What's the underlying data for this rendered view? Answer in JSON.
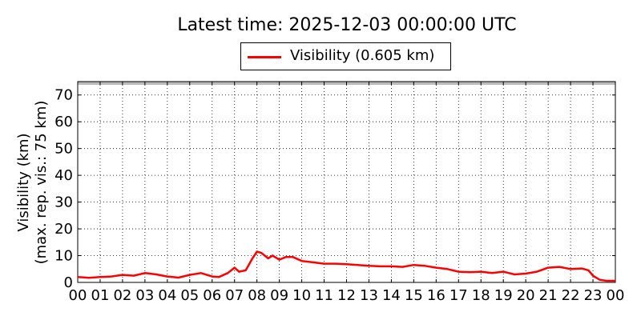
{
  "title": "Latest time: 2025-12-03 00:00:00 UTC",
  "legend": {
    "label": "Visibility (0.605 km)",
    "color": "#ff0000"
  },
  "ylabel_line1": "Visibility (km)",
  "ylabel_line2": "(max. rep. vis.: 75 km)",
  "chart_data": {
    "type": "line",
    "title": "Latest time: 2025-12-03 00:00:00 UTC",
    "xlabel": "",
    "ylabel": "Visibility (km) (max. rep. vis.: 75 km)",
    "xlim": [
      0,
      24
    ],
    "ylim": [
      0,
      75
    ],
    "xticks": [
      "00",
      "01",
      "02",
      "03",
      "04",
      "05",
      "06",
      "07",
      "08",
      "09",
      "10",
      "11",
      "12",
      "13",
      "14",
      "15",
      "16",
      "17",
      "18",
      "19",
      "20",
      "21",
      "22",
      "23",
      "00"
    ],
    "yticks": [
      0,
      10,
      20,
      30,
      40,
      50,
      60,
      70
    ],
    "grid": true,
    "legend_position": "top-center",
    "series": [
      {
        "name": "Visibility (0.605 km)",
        "color": "#ff0000",
        "x": [
          0,
          0.5,
          1,
          1.5,
          2,
          2.5,
          3,
          3.5,
          4,
          4.5,
          5,
          5.5,
          6,
          6.3,
          6.7,
          7,
          7.2,
          7.5,
          7.8,
          8,
          8.2,
          8.5,
          8.7,
          9,
          9.3,
          9.6,
          10,
          10.5,
          11,
          11.5,
          12,
          12.5,
          13,
          13.5,
          14,
          14.5,
          15,
          15.5,
          16,
          16.5,
          17,
          17.5,
          18,
          18.5,
          19,
          19.5,
          20,
          20.5,
          21,
          21.5,
          22,
          22.5,
          22.8,
          23,
          23.3,
          23.6,
          24
        ],
        "values": [
          2,
          1.7,
          2,
          2.2,
          2.8,
          2.5,
          3.5,
          3,
          2.2,
          1.8,
          2.8,
          3.5,
          2.2,
          2,
          3.5,
          5.5,
          4,
          4.5,
          9,
          11.5,
          11,
          9,
          10,
          8.5,
          9.5,
          9.5,
          8,
          7.5,
          7,
          7,
          6.8,
          6.5,
          6.2,
          6,
          6,
          5.8,
          6.5,
          6.2,
          5.5,
          5,
          4,
          3.8,
          4,
          3.5,
          4,
          3,
          3.3,
          4,
          5.5,
          5.8,
          5,
          5.2,
          4.5,
          2.5,
          1,
          0.6,
          0.6
        ]
      }
    ]
  }
}
